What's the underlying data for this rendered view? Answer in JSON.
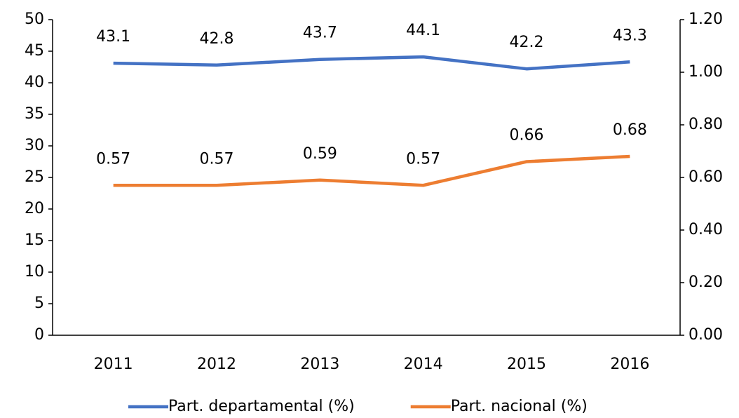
{
  "chart_data": {
    "type": "line",
    "categories": [
      "2011",
      "2012",
      "2013",
      "2014",
      "2015",
      "2016"
    ],
    "series": [
      {
        "name": "Part. departamental (%)",
        "color": "#4472c4",
        "values": [
          43.1,
          42.8,
          43.7,
          44.1,
          42.2,
          43.3
        ]
      },
      {
        "name": "Part. nacional (%)",
        "color": "#ed7d31",
        "axis": "y2",
        "values": [
          0.57,
          0.57,
          0.59,
          0.57,
          0.66,
          0.68
        ]
      }
    ],
    "ylim": [
      0,
      50
    ],
    "yticks": [
      0,
      5,
      10,
      15,
      20,
      25,
      30,
      35,
      40,
      45,
      50
    ],
    "y2lim": [
      0,
      1.2
    ],
    "y2ticks": [
      {
        "value": 0,
        "label": "0.00"
      },
      {
        "value": 0.2,
        "label": "0.20"
      },
      {
        "value": 0.4,
        "label": "0.40"
      },
      {
        "value": 0.6,
        "label": "0.60"
      },
      {
        "value": 0.8,
        "label": "0.80"
      },
      {
        "value": 1.0,
        "label": "1.00"
      },
      {
        "value": 1.2,
        "label": "1.20"
      }
    ],
    "grid": false,
    "legend": "bottom"
  }
}
